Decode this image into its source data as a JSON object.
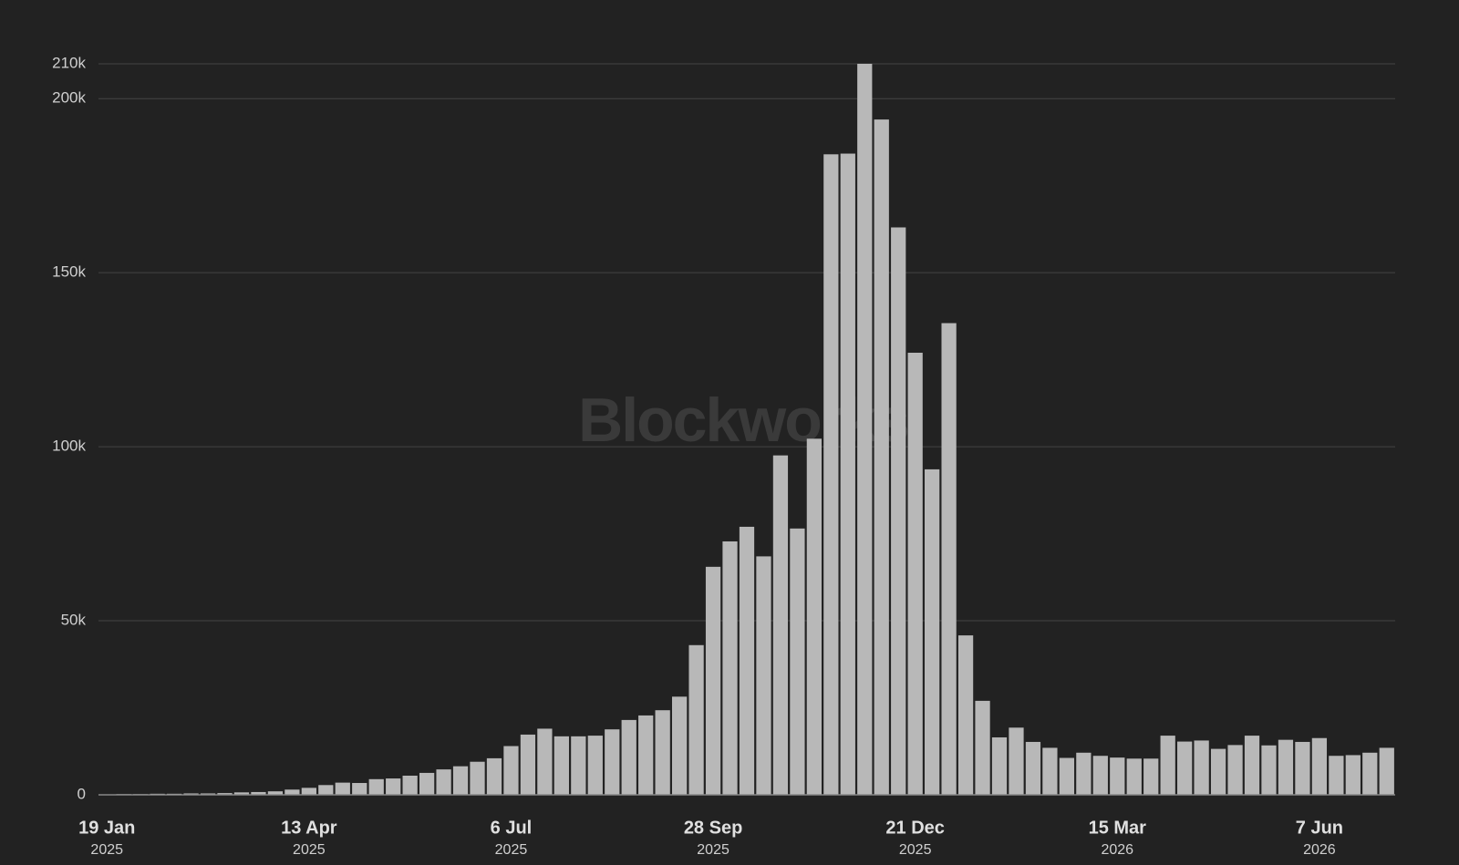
{
  "chart_data": {
    "type": "bar",
    "watermark": "Blockworks",
    "color": "#b8b8b8",
    "grid": true,
    "categories": [
      [
        "19 Jan",
        "2025"
      ],
      null,
      null,
      null,
      null,
      null,
      null,
      null,
      null,
      null,
      null,
      null,
      [
        "13 Apr",
        "2025"
      ],
      null,
      null,
      null,
      null,
      null,
      null,
      null,
      null,
      null,
      null,
      null,
      [
        "6 Jul",
        "2025"
      ],
      null,
      null,
      null,
      null,
      null,
      null,
      null,
      null,
      null,
      null,
      null,
      [
        "28 Sep",
        "2025"
      ],
      null,
      null,
      null,
      null,
      null,
      null,
      null,
      null,
      null,
      null,
      null,
      [
        "21 Dec",
        "2025"
      ],
      null,
      null,
      null,
      null,
      null,
      null,
      null,
      null,
      null,
      null,
      null,
      [
        "15 Mar",
        "2026"
      ],
      null,
      null,
      null,
      null,
      null,
      null,
      null,
      null,
      null,
      null,
      null,
      [
        "7 Jun",
        "2026"
      ],
      null,
      null,
      null,
      null
    ],
    "values": [
      100,
      200,
      200,
      300,
      300,
      400,
      400,
      500,
      700,
      800,
      1000,
      1500,
      2000,
      2800,
      3500,
      3400,
      4500,
      4700,
      5500,
      6300,
      7300,
      8200,
      9500,
      10500,
      14000,
      17300,
      19000,
      16800,
      16800,
      17000,
      18800,
      21500,
      22800,
      24300,
      28200,
      43000,
      65500,
      72800,
      77000,
      68500,
      97500,
      76500,
      102300,
      184000,
      184200,
      210000,
      194000,
      163000,
      127000,
      93500,
      135500,
      45800,
      27000,
      16500,
      19300,
      15200,
      13500,
      10600,
      12100,
      11200,
      10700,
      10400,
      10400,
      17000,
      15300,
      15600,
      13200,
      14300,
      17000,
      14200,
      15800,
      15200,
      16300,
      11200,
      11400,
      12100,
      13500
    ],
    "ylim": [
      0,
      210000
    ],
    "yticks": [
      0,
      {
        "value": 50000,
        "label": "50k"
      },
      {
        "value": 100000,
        "label": "100k"
      },
      {
        "value": 150000,
        "label": "150k"
      },
      {
        "value": 200000,
        "label": "200k"
      },
      {
        "value": 210000,
        "label": "210k"
      }
    ]
  }
}
